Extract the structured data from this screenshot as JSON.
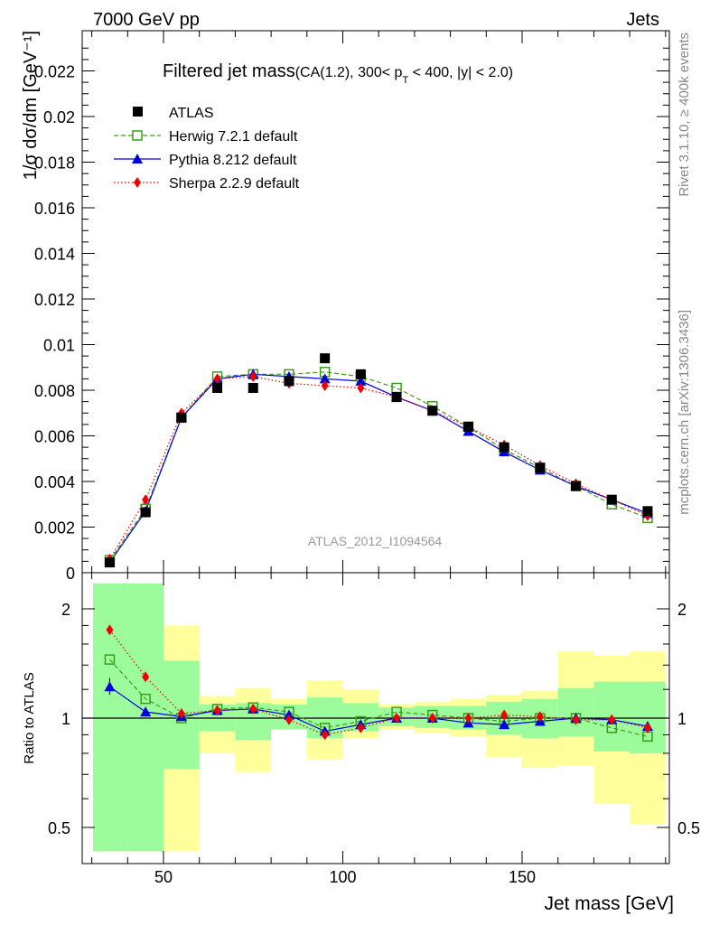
{
  "header": {
    "left": "7000 GeV pp",
    "right": "Jets",
    "side_version": "Rivet 3.1.10, ≥ 400k events",
    "side_source": "mcplots.cern.ch [arXiv:1306.3436]"
  },
  "main_panel": {
    "title": "Filtered jet mass",
    "title_cut_prefix": "(CA(1.2), 300< p",
    "title_cut_sub": "T",
    "title_cut_suffix": " < 400, |y| < 2.0)",
    "ylabel": "1/σ dσ/dm [GeV⁻¹]",
    "watermark": "ATLAS_2012_I1094564",
    "ytick_labels": [
      "0",
      "0.002",
      "0.004",
      "0.006",
      "0.008",
      "0.01",
      "0.012",
      "0.014",
      "0.016",
      "0.018",
      "0.02",
      "0.022"
    ]
  },
  "ratio_panel": {
    "ylabel": "Ratio to ATLAS",
    "ytick_labels": [
      "0.5",
      "1",
      "2"
    ]
  },
  "xaxis": {
    "label": "Jet mass [GeV]",
    "tick_labels": [
      "50",
      "100",
      "150"
    ]
  },
  "legend": [
    {
      "key": "atlas",
      "label": "ATLAS"
    },
    {
      "key": "herwig",
      "label": "Herwig 7.2.1 default"
    },
    {
      "key": "pythia",
      "label": "Pythia 8.212 default"
    },
    {
      "key": "sherpa",
      "label": "Sherpa 2.2.9 default"
    }
  ],
  "colors": {
    "atlas": "#000000",
    "herwig": "#3f9a1f",
    "pythia": "#0000dd",
    "sherpa": "#ee0000",
    "band_inner": "#9cfc9c",
    "band_outer": "#ffff9c"
  },
  "chart_data": [
    {
      "type": "line",
      "panel": "main",
      "x_unit": "GeV",
      "xlim": [
        27,
        191
      ],
      "ylim": [
        0,
        0.0232
      ],
      "bin_edges": [
        30,
        40,
        50,
        60,
        70,
        80,
        90,
        100,
        110,
        120,
        130,
        140,
        150,
        160,
        170,
        180,
        190
      ],
      "x": [
        35,
        45,
        55,
        65,
        75,
        85,
        95,
        105,
        115,
        125,
        135,
        145,
        155,
        165,
        175,
        185
      ],
      "series": [
        {
          "name": "ATLAS",
          "key": "atlas",
          "style": "square-marker",
          "values": [
            0.00045,
            0.00265,
            0.0068,
            0.0081,
            0.0081,
            0.0084,
            0.0094,
            0.0087,
            0.0077,
            0.0071,
            0.0064,
            0.0055,
            0.0046,
            0.0038,
            0.0032,
            0.0027
          ]
        },
        {
          "name": "Herwig 7.2.1 default",
          "key": "herwig",
          "style": "dashed-open-square",
          "values": [
            0.00055,
            0.0028,
            0.0068,
            0.0086,
            0.0087,
            0.0087,
            0.0088,
            0.0086,
            0.0081,
            0.0073,
            0.0064,
            0.0054,
            0.0046,
            0.0038,
            0.003,
            0.0024
          ]
        },
        {
          "name": "Pythia 8.212 default",
          "key": "pythia",
          "style": "solid-triangle",
          "values": [
            0.00045,
            0.0027,
            0.0068,
            0.0085,
            0.0087,
            0.0086,
            0.0085,
            0.0084,
            0.0077,
            0.0071,
            0.0062,
            0.0053,
            0.0045,
            0.0038,
            0.0032,
            0.0026
          ]
        },
        {
          "name": "Sherpa 2.2.9 default",
          "key": "sherpa",
          "style": "dotted-diamond",
          "values": [
            0.0006,
            0.0032,
            0.007,
            0.0085,
            0.0086,
            0.0083,
            0.0082,
            0.0081,
            0.0077,
            0.0071,
            0.0064,
            0.0056,
            0.0047,
            0.0039,
            0.0032,
            0.0025
          ]
        }
      ]
    },
    {
      "type": "line",
      "panel": "ratio",
      "x_unit": "GeV",
      "xlim": [
        27,
        191
      ],
      "ylim": [
        0.43,
        2.35
      ],
      "y_scale": "log",
      "reference": 1,
      "bin_edges": [
        30,
        40,
        50,
        60,
        70,
        80,
        90,
        100,
        110,
        120,
        130,
        140,
        150,
        160,
        170,
        180,
        190
      ],
      "x": [
        35,
        45,
        55,
        65,
        75,
        85,
        95,
        105,
        115,
        125,
        135,
        145,
        155,
        165,
        175,
        185
      ],
      "band_inner_low": [
        0.43,
        0.43,
        0.725,
        0.92,
        0.87,
        0.93,
        0.88,
        0.92,
        0.95,
        0.94,
        0.93,
        0.9,
        0.88,
        0.89,
        0.81,
        0.8
      ],
      "band_inner_high": [
        2.35,
        2.35,
        1.44,
        1.09,
        1.1,
        1.09,
        1.14,
        1.1,
        1.07,
        1.08,
        1.08,
        1.11,
        1.13,
        1.21,
        1.26,
        1.26
      ],
      "band_outer_low": [
        0.43,
        0.43,
        0.43,
        0.8,
        0.71,
        0.93,
        0.77,
        0.88,
        0.93,
        0.91,
        0.89,
        0.78,
        0.73,
        0.74,
        0.58,
        0.51
      ],
      "band_outer_high": [
        2.35,
        2.25,
        1.8,
        1.15,
        1.21,
        1.13,
        1.27,
        1.2,
        1.09,
        1.11,
        1.13,
        1.16,
        1.19,
        1.53,
        1.49,
        1.53
      ],
      "series": [
        {
          "name": "Herwig 7.2.1 default",
          "key": "herwig",
          "values": [
            1.45,
            1.13,
            1.0,
            1.06,
            1.07,
            1.04,
            0.94,
            0.98,
            1.04,
            1.02,
            1.0,
            0.98,
            1.0,
            1.0,
            0.94,
            0.89
          ]
        },
        {
          "name": "Pythia 8.212 default",
          "key": "pythia",
          "values": [
            1.22,
            1.04,
            1.01,
            1.05,
            1.06,
            1.02,
            0.92,
            0.96,
            1.0,
            1.0,
            0.97,
            0.96,
            0.98,
            1.0,
            0.99,
            0.95
          ],
          "error_first": [
            1.16,
            1.29
          ]
        },
        {
          "name": "Sherpa 2.2.9 default",
          "key": "sherpa",
          "values": [
            1.75,
            1.3,
            1.03,
            1.05,
            1.06,
            0.99,
            0.9,
            0.94,
            1.0,
            1.0,
            1.0,
            1.02,
            1.01,
            0.99,
            0.99,
            0.94
          ]
        }
      ]
    }
  ]
}
